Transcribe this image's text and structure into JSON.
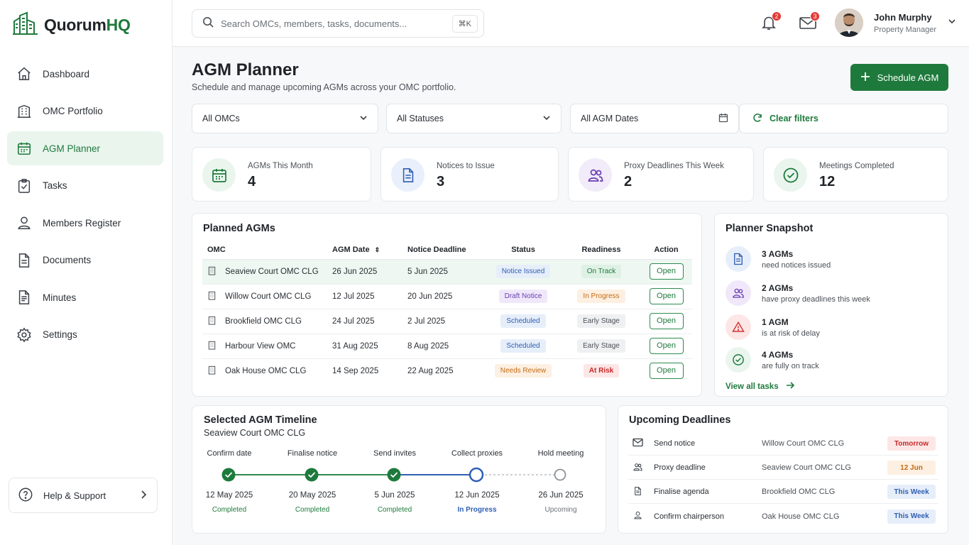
{
  "app": {
    "name_a": "Quorum",
    "name_b": "HQ"
  },
  "nav": [
    {
      "label": "Dashboard",
      "icon": "home-icon"
    },
    {
      "label": "OMC Portfolio",
      "icon": "building-icon"
    },
    {
      "label": "AGM Planner",
      "icon": "calendar-icon",
      "active": true
    },
    {
      "label": "Tasks",
      "icon": "clipboard-check-icon"
    },
    {
      "label": "Members Register",
      "icon": "user-icon"
    },
    {
      "label": "Documents",
      "icon": "document-icon"
    },
    {
      "label": "Minutes",
      "icon": "file-lines-icon"
    },
    {
      "label": "Settings",
      "icon": "gear-icon"
    }
  ],
  "help": {
    "label": "Help & Support"
  },
  "search": {
    "placeholder": "Search OMCs, members, tasks, documents...",
    "shortcut": "⌘K"
  },
  "notifications": {
    "count": "2"
  },
  "messages": {
    "count": "3"
  },
  "user": {
    "name": "John Murphy",
    "role": "Property Manager"
  },
  "page": {
    "title": "AGM Planner",
    "subtitle": "Schedule and manage upcoming AGMs across your OMC portfolio.",
    "primary_action": "Schedule AGM"
  },
  "filters": {
    "omc": "All OMCs",
    "status": "All Statuses",
    "dates": "All AGM Dates",
    "clear": "Clear filters"
  },
  "stats": [
    {
      "label": "AGMs This Month",
      "value": "4"
    },
    {
      "label": "Notices to Issue",
      "value": "3"
    },
    {
      "label": "Proxy Deadlines This Week",
      "value": "2"
    },
    {
      "label": "Meetings Completed",
      "value": "12"
    }
  ],
  "planned": {
    "title": "Planned AGMs",
    "columns": {
      "omc": "OMC",
      "date": "AGM Date",
      "deadline": "Notice Deadline",
      "status": "Status",
      "readiness": "Readiness",
      "action": "Action"
    },
    "rows": [
      {
        "omc": "Seaview Court OMC CLG",
        "date": "26 Jun 2025",
        "deadline": "5 Jun 2025",
        "status": "Notice Issued",
        "readiness": "On Track",
        "action": "Open"
      },
      {
        "omc": "Willow Court OMC CLG",
        "date": "12 Jul 2025",
        "deadline": "20 Jun 2025",
        "status": "Draft Notice",
        "readiness": "In Progress",
        "action": "Open"
      },
      {
        "omc": "Brookfield OMC CLG",
        "date": "24 Jul 2025",
        "deadline": "2 Jul 2025",
        "status": "Scheduled",
        "readiness": "Early Stage",
        "action": "Open"
      },
      {
        "omc": "Harbour View OMC",
        "date": "31 Aug 2025",
        "deadline": "8 Aug 2025",
        "status": "Scheduled",
        "readiness": "Early Stage",
        "action": "Open"
      },
      {
        "omc": "Oak House OMC CLG",
        "date": "14 Sep 2025",
        "deadline": "22 Aug 2025",
        "status": "Needs Review",
        "readiness": "At Risk",
        "action": "Open"
      }
    ]
  },
  "snapshot": {
    "title": "Planner Snapshot",
    "items": [
      {
        "title": "3 AGMs",
        "desc": "need notices issued"
      },
      {
        "title": "2 AGMs",
        "desc": "have proxy deadlines this week"
      },
      {
        "title": "1 AGM",
        "desc": "is at risk of delay"
      },
      {
        "title": "4 AGMs",
        "desc": "are fully on track"
      }
    ],
    "link": "View all tasks"
  },
  "timeline": {
    "title": "Selected AGM Timeline",
    "subtitle": "Seaview Court OMC CLG",
    "steps": [
      {
        "label": "Confirm date",
        "date": "12 May 2025",
        "status": "Completed"
      },
      {
        "label": "Finalise notice",
        "date": "20 May 2025",
        "status": "Completed"
      },
      {
        "label": "Send invites",
        "date": "5 Jun 2025",
        "status": "Completed"
      },
      {
        "label": "Collect proxies",
        "date": "12 Jun 2025",
        "status": "In Progress"
      },
      {
        "label": "Hold meeting",
        "date": "26 Jun 2025",
        "status": "Upcoming"
      }
    ]
  },
  "deadlines": {
    "title": "Upcoming Deadlines",
    "rows": [
      {
        "action": "Send notice",
        "omc": "Willow Court OMC CLG",
        "when": "Tomorrow",
        "icon": "mail-icon"
      },
      {
        "action": "Proxy deadline",
        "omc": "Seaview Court OMC CLG",
        "when": "12 Jun",
        "icon": "users-icon"
      },
      {
        "action": "Finalise agenda",
        "omc": "Brookfield OMC CLG",
        "when": "This Week",
        "icon": "document-icon"
      },
      {
        "action": "Confirm chairperson",
        "omc": "Oak House OMC CLG",
        "when": "This Week",
        "icon": "user-icon"
      }
    ]
  },
  "colors": {
    "brand": "#1e7a3c",
    "progress": "#2f5fb3",
    "danger": "#e53935"
  }
}
